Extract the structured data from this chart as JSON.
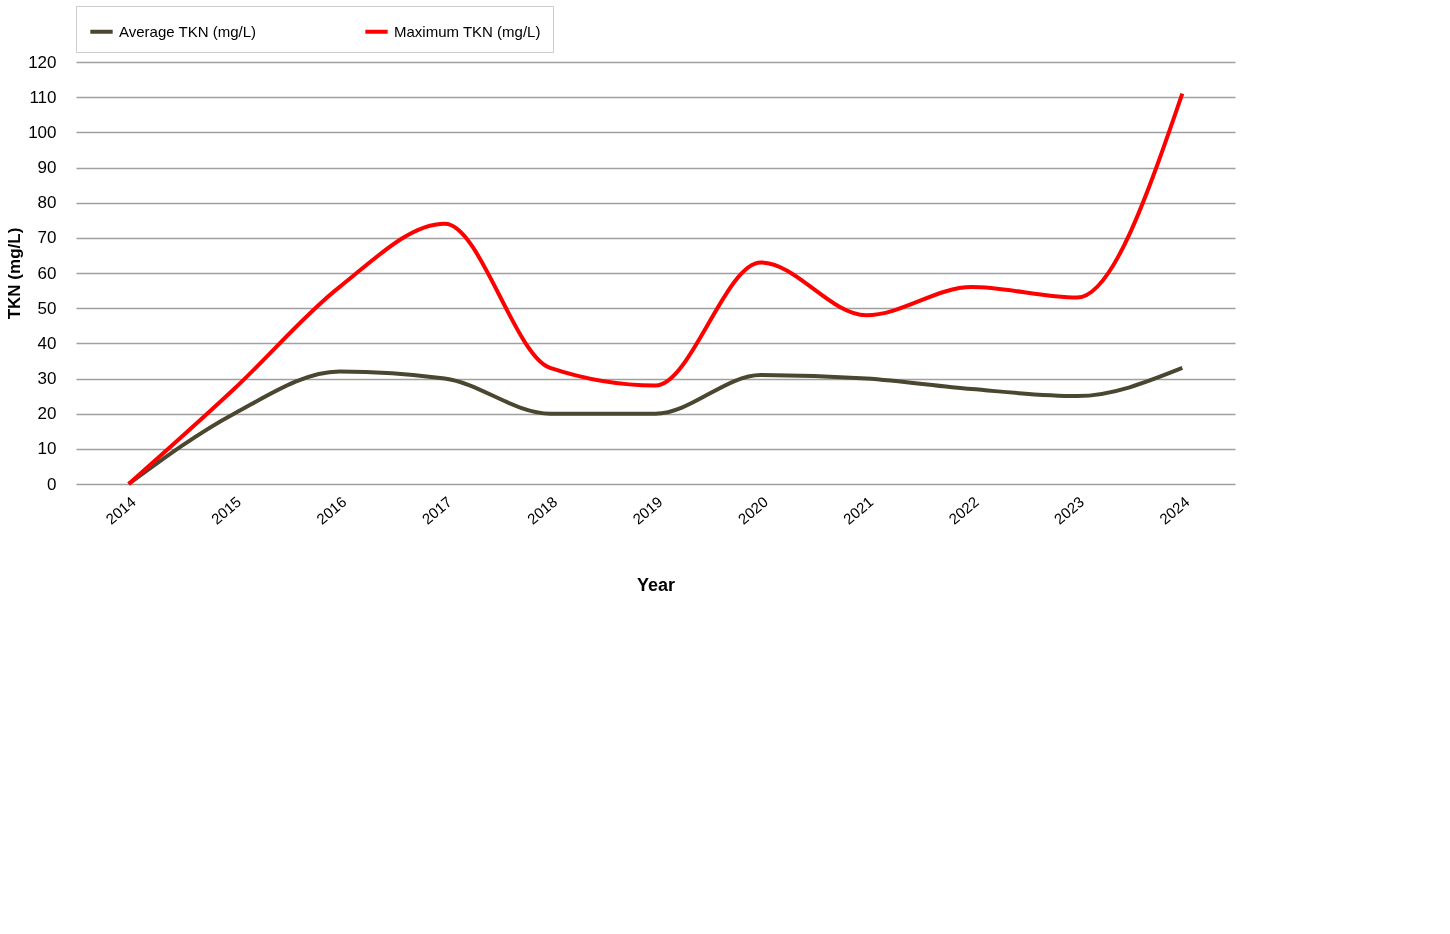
{
  "chart_data": {
    "type": "line",
    "xlabel": "Year",
    "ylabel": "TKN (mg/L)",
    "categories": [
      "2014",
      "2015",
      "2016",
      "2017",
      "2018",
      "2019",
      "2020",
      "2021",
      "2022",
      "2023",
      "2024"
    ],
    "series": [
      {
        "name": "Average TKN (mg/L)",
        "color": "#4a4630",
        "values": [
          0,
          20,
          32,
          30,
          20,
          20,
          31,
          30,
          27,
          25,
          33
        ]
      },
      {
        "name": "Maximum TKN (mg/L)",
        "color": "#ff0000",
        "values": [
          0,
          27,
          56,
          74,
          33,
          28,
          63,
          48,
          56,
          53,
          111
        ]
      }
    ],
    "ylim": [
      0,
      120
    ],
    "yticks": [
      0,
      10,
      20,
      30,
      40,
      50,
      60,
      70,
      80,
      90,
      100,
      110,
      120
    ],
    "grid": "y",
    "legend": "top",
    "marker": "none",
    "line_style": "solid"
  }
}
